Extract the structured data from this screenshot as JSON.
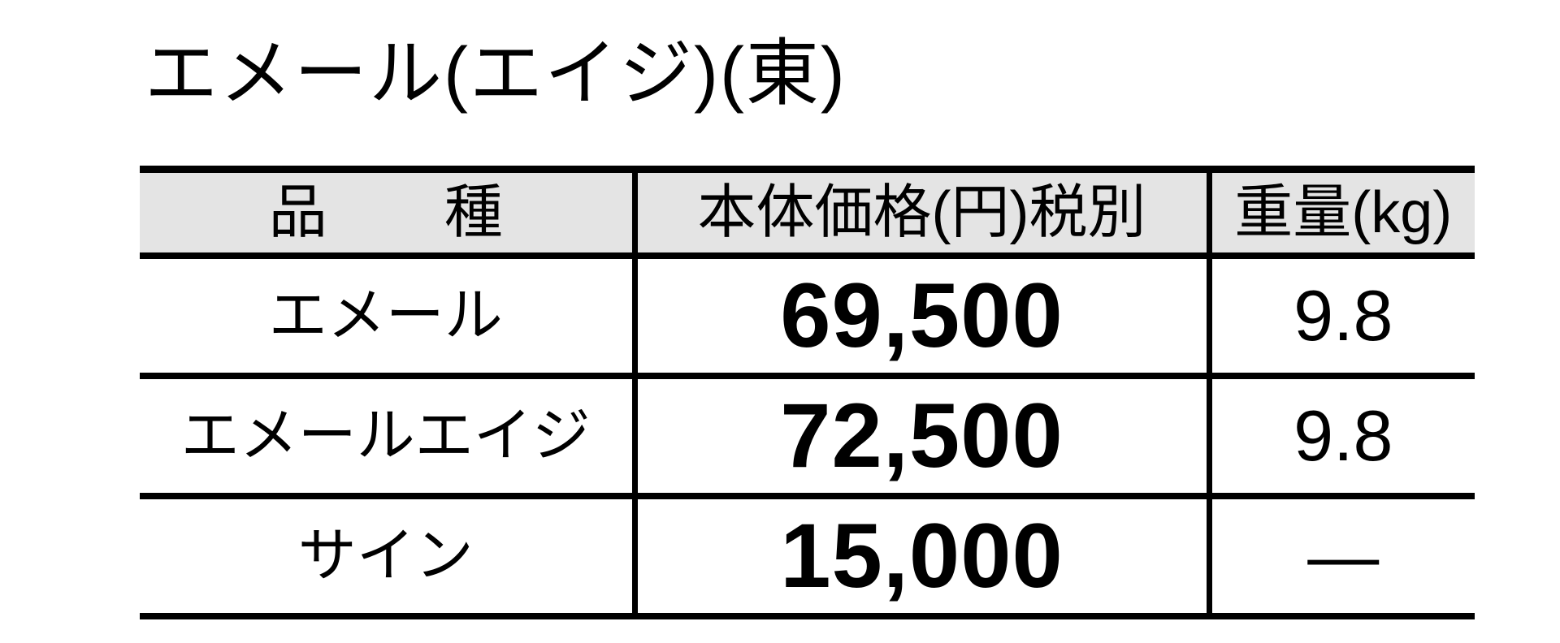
{
  "title": "エメール(エイジ)(東)",
  "table": {
    "headers": {
      "product": "品　　種",
      "price": "本体価格(円)税別",
      "weight": "重量(kg)"
    },
    "rows": [
      {
        "product": "エメール",
        "price": "69,500",
        "weight": "9.8"
      },
      {
        "product": "エメールエイジ",
        "price": "72,500",
        "weight": "9.8"
      },
      {
        "product": "サイン",
        "price": "15,000",
        "weight": "—"
      }
    ]
  },
  "colors": {
    "page_background": "#ffffff",
    "text": "#000000",
    "border": "#000000",
    "header_background": "#e4e4e4"
  }
}
